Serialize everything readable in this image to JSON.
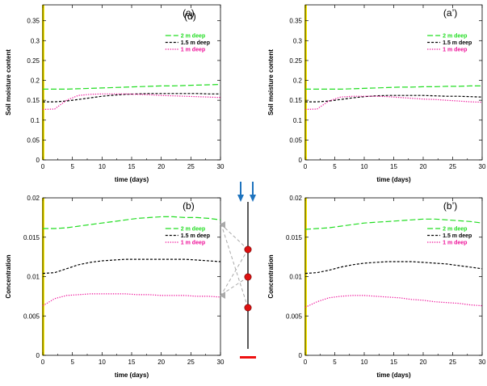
{
  "colors": {
    "2m": "#22dd22",
    "1.5m": "#000000",
    "1m": "#ee1199",
    "yaxis_highlight": "#ffee00",
    "arrows": "#1e73be",
    "sensors": "#dd1111",
    "surface_bar": "#ee1111",
    "connectors": "#aaaaaa"
  },
  "chart_data": [
    {
      "id": "a",
      "type": "line",
      "panel_label": "(a)",
      "overlay_label": "(d)",
      "xlabel": "time (days)",
      "ylabel": "Soil moisture content",
      "xlim": [
        0,
        30
      ],
      "ylim": [
        0,
        0.39
      ],
      "xticks": [
        "0",
        "5",
        "10",
        "15",
        "20",
        "25",
        "30"
      ],
      "yticks": [
        "0",
        "0.05",
        "0.1",
        "0.15",
        "0.2",
        "0.25",
        "0.3",
        "0.35"
      ],
      "legend_position": "upper-right",
      "x": [
        0,
        2,
        4,
        6,
        8,
        10,
        12,
        14,
        16,
        18,
        20,
        22,
        24,
        26,
        28,
        30
      ],
      "series": [
        {
          "name": "2 m deep",
          "color_key": "2m",
          "style": "long-dash",
          "values": [
            0.178,
            0.178,
            0.178,
            0.179,
            0.18,
            0.181,
            0.182,
            0.183,
            0.184,
            0.185,
            0.186,
            0.186,
            0.187,
            0.188,
            0.189,
            0.19
          ]
        },
        {
          "name": "1.5 m deep",
          "color_key": "1.5m",
          "style": "short-dash",
          "values": [
            0.146,
            0.146,
            0.148,
            0.152,
            0.156,
            0.16,
            0.163,
            0.165,
            0.166,
            0.167,
            0.167,
            0.167,
            0.167,
            0.167,
            0.166,
            0.166
          ]
        },
        {
          "name": "1 m deep",
          "color_key": "1m",
          "style": "dotted",
          "values": [
            0.127,
            0.128,
            0.15,
            0.162,
            0.165,
            0.166,
            0.166,
            0.166,
            0.165,
            0.164,
            0.162,
            0.161,
            0.16,
            0.159,
            0.158,
            0.157
          ]
        }
      ]
    },
    {
      "id": "a2",
      "type": "line",
      "panel_label": "(a’)",
      "xlabel": "time (days)",
      "ylabel": "Soil moisture content",
      "xlim": [
        0,
        30
      ],
      "ylim": [
        0,
        0.39
      ],
      "xticks": [
        "0",
        "5",
        "10",
        "15",
        "20",
        "25",
        "30"
      ],
      "yticks": [
        "0",
        "0.05",
        "0.1",
        "0.15",
        "0.2",
        "0.25",
        "0.3",
        "0.35"
      ],
      "legend_position": "upper-right",
      "x": [
        0,
        2,
        4,
        6,
        8,
        10,
        12,
        14,
        16,
        18,
        20,
        22,
        24,
        26,
        28,
        30
      ],
      "series": [
        {
          "name": "2 m deep",
          "color_key": "2m",
          "style": "long-dash",
          "values": [
            0.178,
            0.178,
            0.178,
            0.178,
            0.179,
            0.18,
            0.181,
            0.182,
            0.183,
            0.183,
            0.184,
            0.184,
            0.185,
            0.185,
            0.186,
            0.186
          ]
        },
        {
          "name": "1.5 m deep",
          "color_key": "1.5m",
          "style": "short-dash",
          "values": [
            0.146,
            0.146,
            0.148,
            0.152,
            0.156,
            0.159,
            0.161,
            0.162,
            0.162,
            0.162,
            0.162,
            0.161,
            0.16,
            0.16,
            0.159,
            0.158
          ]
        },
        {
          "name": "1 m deep",
          "color_key": "1m",
          "style": "dotted",
          "values": [
            0.127,
            0.128,
            0.148,
            0.158,
            0.16,
            0.16,
            0.16,
            0.159,
            0.157,
            0.155,
            0.153,
            0.152,
            0.15,
            0.148,
            0.146,
            0.145
          ]
        }
      ]
    },
    {
      "id": "b",
      "type": "line",
      "panel_label": "(b)",
      "xlabel": "time (days)",
      "ylabel": "Concentration",
      "xlim": [
        0,
        30
      ],
      "ylim": [
        0,
        0.02
      ],
      "xticks": [
        "0",
        "5",
        "10",
        "15",
        "20",
        "25",
        "30"
      ],
      "yticks": [
        "0",
        "0.005",
        "0.01",
        "0.015",
        "0.02"
      ],
      "legend_position": "upper-right",
      "x": [
        0,
        2,
        4,
        6,
        8,
        10,
        12,
        14,
        16,
        18,
        20,
        22,
        24,
        26,
        28,
        30
      ],
      "series": [
        {
          "name": "2 m deep",
          "color_key": "2m",
          "style": "long-dash",
          "values": [
            0.0161,
            0.0161,
            0.0162,
            0.0164,
            0.0166,
            0.0168,
            0.017,
            0.0172,
            0.0174,
            0.0175,
            0.0176,
            0.0176,
            0.0175,
            0.0175,
            0.0174,
            0.0172
          ]
        },
        {
          "name": "1.5 m deep",
          "color_key": "1.5m",
          "style": "short-dash",
          "values": [
            0.0104,
            0.0105,
            0.011,
            0.0115,
            0.0118,
            0.012,
            0.0121,
            0.0122,
            0.0122,
            0.0122,
            0.0122,
            0.0122,
            0.0122,
            0.0121,
            0.012,
            0.0119
          ]
        },
        {
          "name": "1 m deep",
          "color_key": "1m",
          "style": "dotted",
          "values": [
            0.0063,
            0.0072,
            0.0076,
            0.0077,
            0.0078,
            0.0078,
            0.0078,
            0.0078,
            0.0077,
            0.0077,
            0.0076,
            0.0076,
            0.0076,
            0.0075,
            0.0075,
            0.0074
          ]
        }
      ]
    },
    {
      "id": "b2",
      "type": "line",
      "panel_label": "(b’)",
      "xlabel": "time (days)",
      "ylabel": "Concentration",
      "xlim": [
        0,
        30
      ],
      "ylim": [
        0,
        0.02
      ],
      "xticks": [
        "0",
        "5",
        "10",
        "15",
        "20",
        "25",
        "30"
      ],
      "yticks": [
        "0",
        "0.005",
        "0.01",
        "0.015",
        "0.02"
      ],
      "legend_position": "upper-right",
      "x": [
        0,
        2,
        4,
        6,
        8,
        10,
        12,
        14,
        16,
        18,
        20,
        22,
        24,
        26,
        28,
        30
      ],
      "series": [
        {
          "name": "2 m deep",
          "color_key": "2m",
          "style": "long-dash",
          "values": [
            0.016,
            0.0161,
            0.0162,
            0.0164,
            0.0166,
            0.0168,
            0.0169,
            0.017,
            0.0171,
            0.0172,
            0.0173,
            0.0173,
            0.0172,
            0.0171,
            0.017,
            0.0168
          ]
        },
        {
          "name": "1.5 m deep",
          "color_key": "1.5m",
          "style": "short-dash",
          "values": [
            0.0104,
            0.0105,
            0.0108,
            0.0112,
            0.0115,
            0.0117,
            0.0118,
            0.0119,
            0.0119,
            0.0119,
            0.0118,
            0.0117,
            0.0116,
            0.0114,
            0.0112,
            0.011
          ]
        },
        {
          "name": "1 m deep",
          "color_key": "1m",
          "style": "dotted",
          "values": [
            0.0061,
            0.0068,
            0.0073,
            0.0075,
            0.0076,
            0.0076,
            0.0075,
            0.0074,
            0.0073,
            0.0071,
            0.007,
            0.0068,
            0.0067,
            0.0066,
            0.0064,
            0.0063
          ]
        }
      ]
    }
  ]
}
